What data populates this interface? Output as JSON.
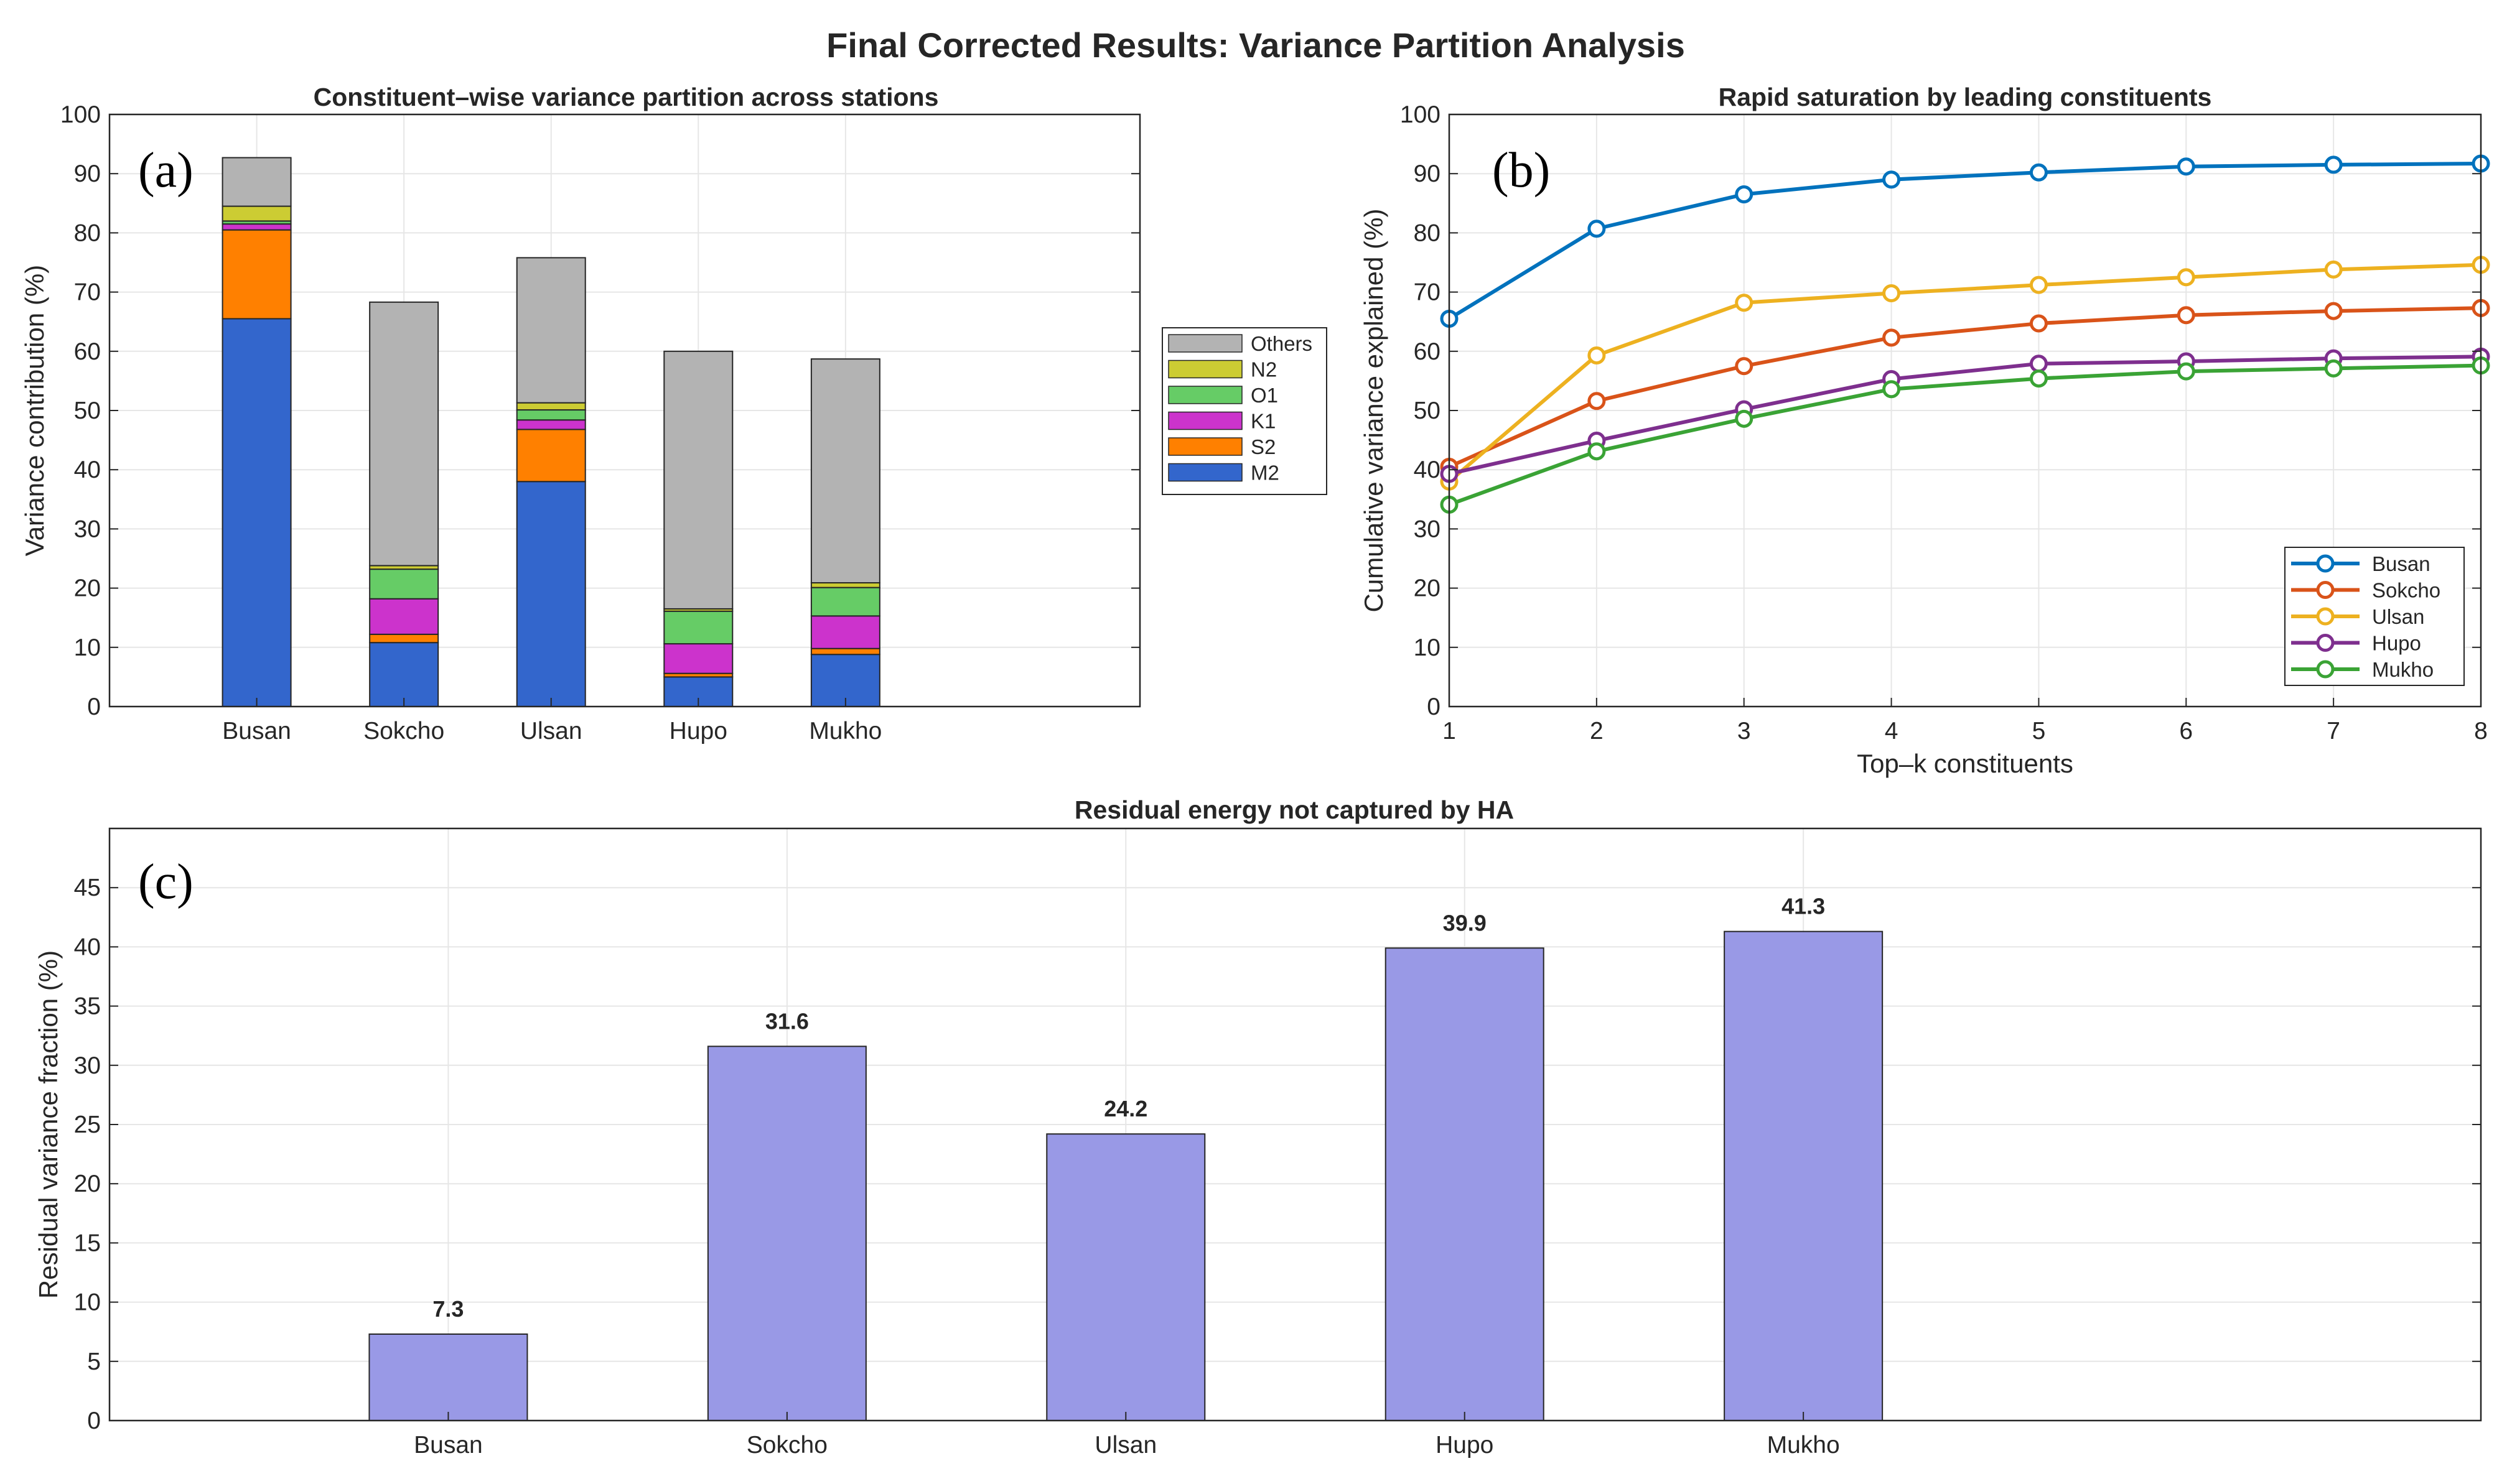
{
  "figure_title": "Final Corrected Results: Variance Partition Analysis",
  "chart_data": [
    {
      "type": "bar",
      "stacked": true,
      "panel_label": "(a)",
      "title": "Constituent–wise variance partition across stations",
      "xlabel": "",
      "ylabel": "Variance contribution (%)",
      "ylim": [
        0,
        100
      ],
      "yticks": [
        "0",
        "10",
        "20",
        "30",
        "40",
        "50",
        "60",
        "70",
        "80",
        "90",
        "100"
      ],
      "categories": [
        "Busan",
        "Sokcho",
        "Ulsan",
        "Hupo",
        "Mukho"
      ],
      "legend_position": "right",
      "grid": true,
      "series": [
        {
          "name": "M2",
          "color": "#3366cc",
          "values": [
            65.5,
            10.8,
            38.0,
            5.0,
            8.8
          ]
        },
        {
          "name": "S2",
          "color": "#ff8000",
          "values": [
            15.0,
            1.4,
            8.8,
            0.6,
            1.0
          ]
        },
        {
          "name": "K1",
          "color": "#cc33cc",
          "values": [
            1.0,
            6.0,
            1.6,
            5.0,
            5.5
          ]
        },
        {
          "name": "O1",
          "color": "#66cc66",
          "values": [
            0.5,
            5.0,
            1.7,
            5.5,
            4.8
          ]
        },
        {
          "name": "N2",
          "color": "#cccc33",
          "values": [
            2.5,
            0.6,
            1.2,
            0.4,
            0.8
          ]
        },
        {
          "name": "Others",
          "color": "#b3b3b3",
          "values": [
            8.2,
            44.5,
            24.5,
            43.5,
            37.8
          ]
        }
      ]
    },
    {
      "type": "line",
      "panel_label": "(b)",
      "title": "Rapid saturation by leading constituents",
      "xlabel": "Top–k constituents",
      "ylabel": "Cumulative variance explained (%)",
      "x": [
        1,
        2,
        3,
        4,
        5,
        6,
        7,
        8
      ],
      "xticks": [
        "1",
        "2",
        "3",
        "4",
        "5",
        "6",
        "7",
        "8"
      ],
      "xlim": [
        1,
        8
      ],
      "ylim": [
        0,
        100
      ],
      "yticks": [
        "0",
        "10",
        "20",
        "30",
        "40",
        "50",
        "60",
        "70",
        "80",
        "90",
        "100"
      ],
      "legend_position": "bottom-right",
      "grid": true,
      "series": [
        {
          "name": "Busan",
          "color": "#0072bd",
          "values": [
            65.5,
            80.7,
            86.5,
            89.0,
            90.2,
            91.2,
            91.5,
            91.7
          ]
        },
        {
          "name": "Sokcho",
          "color": "#d95319",
          "values": [
            40.5,
            51.6,
            57.5,
            62.3,
            64.7,
            66.1,
            66.8,
            67.3
          ]
        },
        {
          "name": "Ulsan",
          "color": "#edb120",
          "values": [
            38.0,
            59.3,
            68.2,
            69.8,
            71.2,
            72.5,
            73.8,
            74.6
          ]
        },
        {
          "name": "Hupo",
          "color": "#7e2f8e",
          "values": [
            39.3,
            44.9,
            50.2,
            55.3,
            57.9,
            58.3,
            58.8,
            59.1
          ]
        },
        {
          "name": "Mukho",
          "color": "#3aa335",
          "values": [
            34.1,
            43.1,
            48.6,
            53.6,
            55.4,
            56.6,
            57.1,
            57.6
          ]
        }
      ]
    },
    {
      "type": "bar",
      "panel_label": "(c)",
      "title": "Residual energy not captured by HA",
      "xlabel": "",
      "ylabel": "Residual variance fraction (%)",
      "ylim": [
        0,
        50
      ],
      "yticks": [
        "0",
        "5",
        "10",
        "15",
        "20",
        "25",
        "30",
        "35",
        "40",
        "45"
      ],
      "categories": [
        "Busan",
        "Sokcho",
        "Ulsan",
        "Hupo",
        "Mukho"
      ],
      "values": [
        7.3,
        31.6,
        24.2,
        39.9,
        41.3
      ],
      "labels": [
        "7.3",
        "31.6",
        "24.2",
        "39.9",
        "41.3"
      ],
      "color": "#9999e6",
      "grid": true
    }
  ]
}
